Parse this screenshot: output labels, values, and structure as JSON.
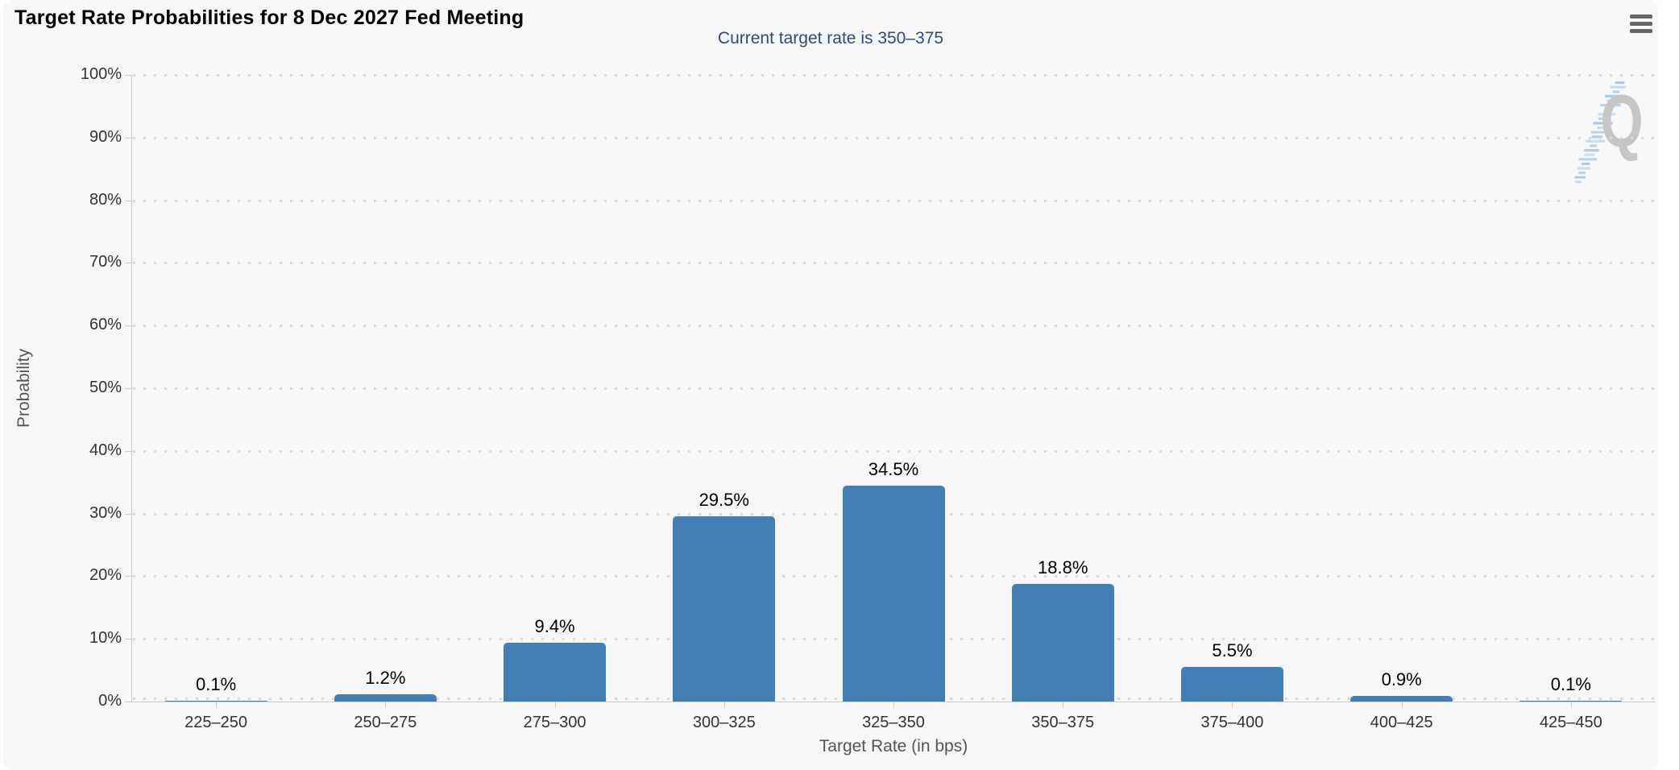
{
  "chart": {
    "menu_icon": "hamburger-menu-icon"
  },
  "chart_data": {
    "type": "bar",
    "title": "Target Rate Probabilities for 8 Dec 2027 Fed Meeting",
    "subtitle": "Current target rate is 350–375",
    "xlabel": "Target Rate (in bps)",
    "ylabel": "Probability",
    "categories": [
      "225–250",
      "250–275",
      "275–300",
      "300–325",
      "325–350",
      "350–375",
      "375–400",
      "400–425",
      "425–450"
    ],
    "values": [
      0.1,
      1.2,
      9.4,
      29.5,
      34.5,
      18.8,
      5.5,
      0.9,
      0.1
    ],
    "value_labels": [
      "0.1%",
      "1.2%",
      "9.4%",
      "29.5%",
      "34.5%",
      "18.8%",
      "5.5%",
      "0.9%",
      "0.1%"
    ],
    "ylim": [
      0,
      100
    ],
    "ytick_step": 10,
    "ytick_labels": [
      "0%",
      "10%",
      "20%",
      "30%",
      "40%",
      "50%",
      "60%",
      "70%",
      "80%",
      "90%",
      "100%"
    ],
    "legend": "none",
    "grid": "dotted-horizontal",
    "watermark_letter": "Q",
    "colors": {
      "page_background": "#ffffff",
      "chart_background": "#f7f7f7",
      "bar": "#437eb4",
      "axis": "#cccccc",
      "grid_dot": "#d9d9d9",
      "tick_label": "#333333",
      "axis_title": "#555555",
      "title": "#000000",
      "subtitle": "#334a72",
      "data_label": "#000000",
      "menu_icon": "#666666",
      "watermark_gray": "#c6c6c6",
      "watermark_blue": "#a9c9ec"
    }
  }
}
